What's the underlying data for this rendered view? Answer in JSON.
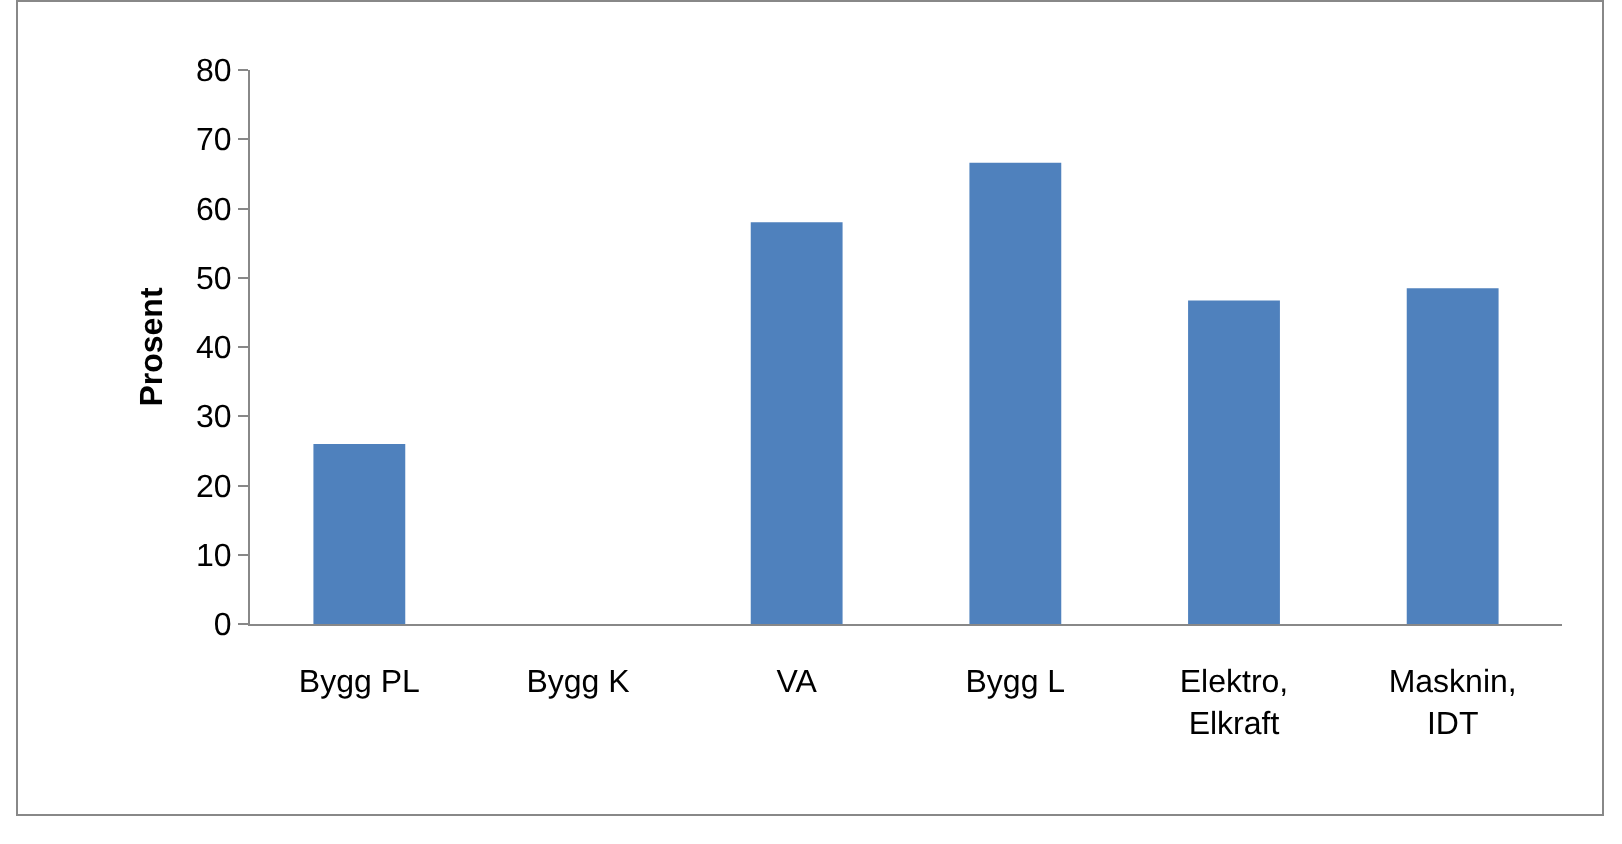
{
  "chart_data": {
    "type": "bar",
    "ylabel": "Prosent",
    "categories": [
      "Bygg PL",
      "Bygg K",
      "VA",
      "Bygg L",
      "Elektro, Elkraft",
      "Masknin, IDT"
    ],
    "values": [
      26,
      0,
      58,
      66.6,
      46.7,
      48.5
    ],
    "color": "#4f81bd",
    "ylim": [
      0,
      80
    ],
    "yticks": [
      0,
      10,
      20,
      30,
      40,
      50,
      60,
      70,
      80
    ],
    "grid": false
  }
}
